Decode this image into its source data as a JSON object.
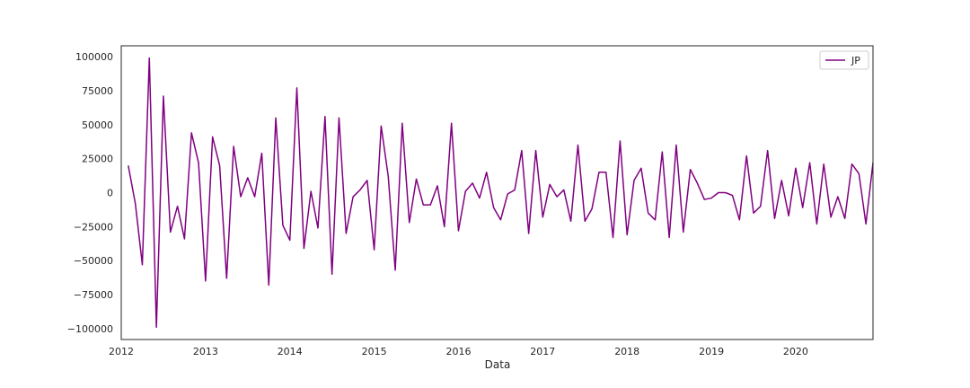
{
  "chart_data": {
    "type": "line",
    "title": "",
    "xlabel": "Data",
    "ylabel": "",
    "xlim": [
      2012.0,
      2020.917
    ],
    "ylim": [
      -108000,
      108000
    ],
    "xticks": [
      2012,
      2013,
      2014,
      2015,
      2016,
      2017,
      2018,
      2019,
      2020
    ],
    "xtick_labels": [
      "2012",
      "2013",
      "2014",
      "2015",
      "2016",
      "2017",
      "2018",
      "2019",
      "2020"
    ],
    "yticks": [
      -100000,
      -75000,
      -50000,
      -25000,
      0,
      25000,
      50000,
      75000,
      100000
    ],
    "ytick_labels": [
      "−100000",
      "−75000",
      "−50000",
      "−25000",
      "0",
      "25000",
      "50000",
      "75000",
      "100000"
    ],
    "grid": false,
    "legend_position": "top-right",
    "series": [
      {
        "name": "JP",
        "color": "#800080",
        "x": [
          2012.083,
          2012.167,
          2012.25,
          2012.333,
          2012.417,
          2012.5,
          2012.583,
          2012.667,
          2012.75,
          2012.833,
          2012.917,
          2013.0,
          2013.083,
          2013.167,
          2013.25,
          2013.333,
          2013.417,
          2013.5,
          2013.583,
          2013.667,
          2013.75,
          2013.833,
          2013.917,
          2014.0,
          2014.083,
          2014.167,
          2014.25,
          2014.333,
          2014.417,
          2014.5,
          2014.583,
          2014.667,
          2014.75,
          2014.833,
          2014.917,
          2015.0,
          2015.083,
          2015.167,
          2015.25,
          2015.333,
          2015.417,
          2015.5,
          2015.583,
          2015.667,
          2015.75,
          2015.833,
          2015.917,
          2016.0,
          2016.083,
          2016.167,
          2016.25,
          2016.333,
          2016.417,
          2016.5,
          2016.583,
          2016.667,
          2016.75,
          2016.833,
          2016.917,
          2017.0,
          2017.083,
          2017.167,
          2017.25,
          2017.333,
          2017.417,
          2017.5,
          2017.583,
          2017.667,
          2017.75,
          2017.833,
          2017.917,
          2018.0,
          2018.083,
          2018.167,
          2018.25,
          2018.333,
          2018.417,
          2018.5,
          2018.583,
          2018.667,
          2018.75,
          2018.833,
          2018.917,
          2019.0,
          2019.083,
          2019.167,
          2019.25,
          2019.333,
          2019.417,
          2019.5,
          2019.583,
          2019.667,
          2019.75,
          2019.833,
          2019.917,
          2020.0,
          2020.083,
          2020.167,
          2020.25,
          2020.333,
          2020.417,
          2020.5,
          2020.583,
          2020.667,
          2020.75,
          2020.833,
          2020.917
        ],
        "values": [
          20000,
          -8000,
          -53000,
          99000,
          -99000,
          71000,
          -29000,
          -10000,
          -34000,
          44000,
          22000,
          -65000,
          41000,
          20000,
          -63000,
          34000,
          -3000,
          11000,
          -3000,
          29000,
          -68000,
          55000,
          -24000,
          -35000,
          77000,
          -41000,
          1000,
          -26000,
          56000,
          -60000,
          55000,
          -30000,
          -3000,
          2000,
          9000,
          -42000,
          49000,
          12000,
          -57000,
          51000,
          -22000,
          10000,
          -9000,
          -9000,
          5000,
          -25000,
          51000,
          -28000,
          1000,
          7000,
          -4000,
          15000,
          -11000,
          -20000,
          -1000,
          2000,
          31000,
          -30000,
          31000,
          -18000,
          6000,
          -3000,
          2000,
          -21000,
          35000,
          -21000,
          -12000,
          15000,
          15000,
          -33000,
          38000,
          -31000,
          9000,
          18000,
          -15000,
          -20000,
          30000,
          -33000,
          35000,
          -29000,
          17000,
          7000,
          -5000,
          -4000,
          0,
          0,
          -2000,
          -20000,
          27000,
          -15000,
          -10000,
          31000,
          -19000,
          9000,
          -17000,
          18000,
          -11000,
          22000,
          -23000,
          21000,
          -18000,
          -3000,
          -19000,
          21000,
          14000,
          -23000,
          22000
        ]
      }
    ]
  }
}
